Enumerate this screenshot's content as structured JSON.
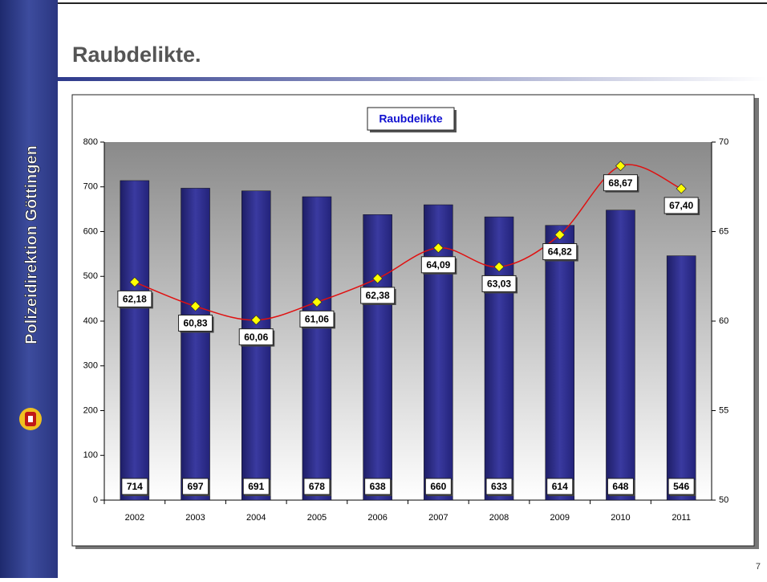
{
  "sidebar": {
    "text": "Polizeidirektion Göttingen"
  },
  "slide": {
    "title": "Raubdelikte.",
    "page_number": "7"
  },
  "chart_data": {
    "type": "bar_line",
    "title": "Raubdelikte",
    "categories": [
      "2002",
      "2003",
      "2004",
      "2005",
      "2006",
      "2007",
      "2008",
      "2009",
      "2010",
      "2011"
    ],
    "series": [
      {
        "type": "bar",
        "color": "#2e2e86",
        "values": [
          714,
          697,
          691,
          678,
          638,
          660,
          633,
          614,
          648,
          546
        ]
      },
      {
        "type": "line",
        "axis": "y2",
        "color": "#e01010",
        "marker_color": "#ffff00",
        "values": [
          62.18,
          60.83,
          60.06,
          61.06,
          62.38,
          64.09,
          63.03,
          64.82,
          68.67,
          67.4
        ],
        "value_labels": [
          "62,18",
          "60,83",
          "60,06",
          "61,06",
          "62,38",
          "64,09",
          "63,03",
          "64,82",
          "68,67",
          "67,40"
        ]
      }
    ],
    "ylim": [
      0,
      800
    ],
    "yticks": [
      0,
      100,
      200,
      300,
      400,
      500,
      600,
      700,
      800
    ],
    "y2lim": [
      50,
      70
    ],
    "y2ticks": [
      50,
      55,
      60,
      65,
      70
    ]
  }
}
